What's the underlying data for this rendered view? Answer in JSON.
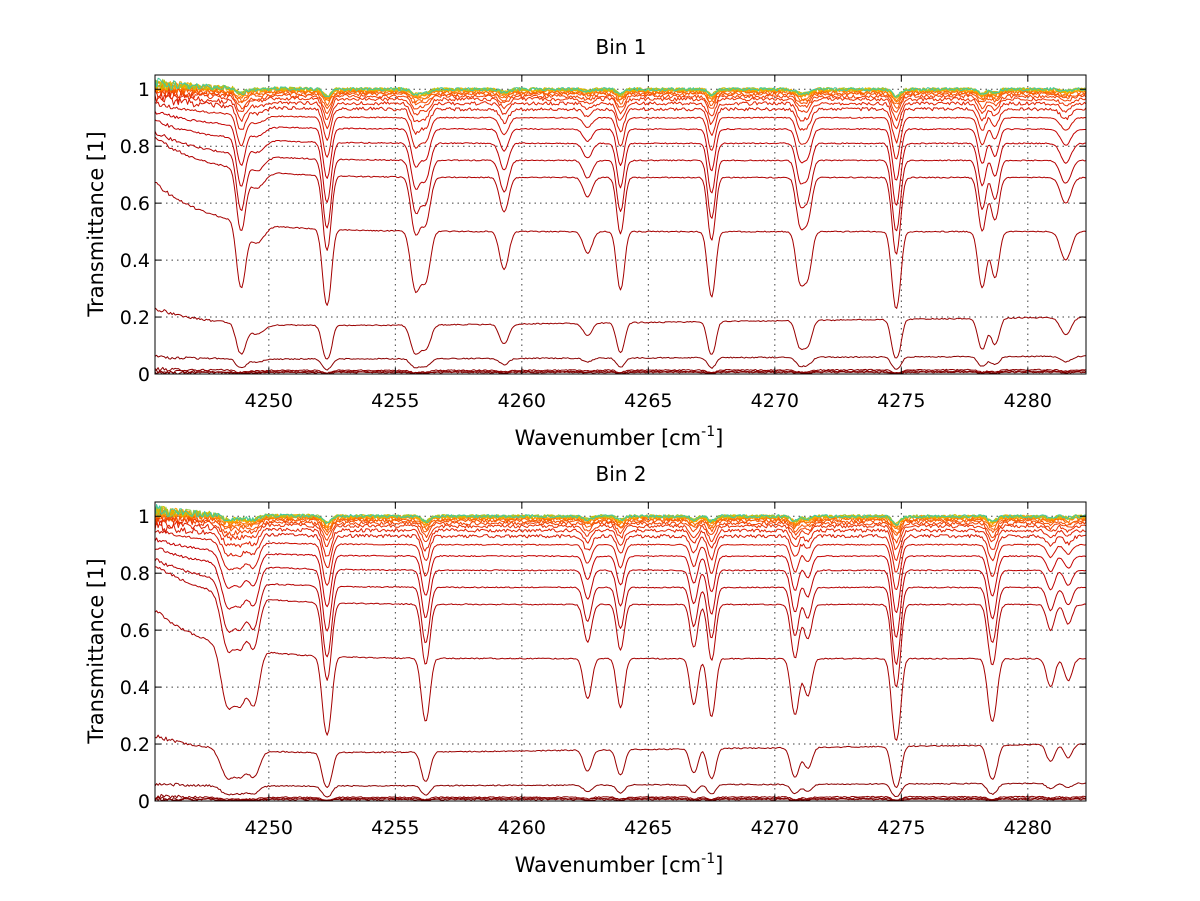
{
  "chart_data": [
    {
      "type": "line",
      "title": "Bin 1",
      "xlabel": "Wavenumber [cm",
      "xlabel_sup": "-1",
      "xlabel_end": "]",
      "ylabel": "Transmittance [1]",
      "xlim": [
        4245.5,
        4282.3
      ],
      "ylim": [
        0,
        1.05
      ],
      "xticks": [
        4250,
        4255,
        4260,
        4265,
        4270,
        4275,
        4280
      ],
      "xtick_labels": [
        "4250",
        "4255",
        "4260",
        "4265",
        "4270",
        "4275",
        "4280"
      ],
      "yticks": [
        0,
        0.2,
        0.4,
        0.6,
        0.8,
        1
      ],
      "ytick_labels": [
        "0",
        "0.2",
        "0.4",
        "0.6",
        "0.8",
        "1"
      ],
      "grid": true,
      "lines": [
        {
          "x": 4248.9,
          "w": 0.16,
          "a": 1.0
        },
        {
          "x": 4249.5,
          "w": 0.3,
          "a": 0.25
        },
        {
          "x": 4252.3,
          "w": 0.15,
          "a": 1.35
        },
        {
          "x": 4255.8,
          "w": 0.17,
          "a": 0.95
        },
        {
          "x": 4256.2,
          "w": 0.17,
          "a": 0.75
        },
        {
          "x": 4259.3,
          "w": 0.17,
          "a": 0.55
        },
        {
          "x": 4262.6,
          "w": 0.17,
          "a": 0.3
        },
        {
          "x": 4263.9,
          "w": 0.14,
          "a": 0.95
        },
        {
          "x": 4267.5,
          "w": 0.14,
          "a": 1.1
        },
        {
          "x": 4271.0,
          "w": 0.15,
          "a": 0.75
        },
        {
          "x": 4271.3,
          "w": 0.15,
          "a": 0.65
        },
        {
          "x": 4274.8,
          "w": 0.15,
          "a": 1.4
        },
        {
          "x": 4278.2,
          "w": 0.15,
          "a": 0.9
        },
        {
          "x": 4278.7,
          "w": 0.15,
          "a": 0.7
        },
        {
          "x": 4281.5,
          "w": 0.2,
          "a": 0.4
        }
      ],
      "series": [
        {
          "base": 0.005,
          "edge": 0.0,
          "color": "#7a0000"
        },
        {
          "base": 0.008,
          "edge": 0.0,
          "color": "#800000"
        },
        {
          "base": 0.012,
          "edge": 0.005,
          "color": "#8b0000"
        },
        {
          "base": 0.05,
          "edge": 0.01,
          "color": "#8b0000"
        },
        {
          "base": 0.16,
          "edge": 0.07,
          "color": "#990000"
        },
        {
          "base": 0.5,
          "edge": 0.17,
          "color": "#a50000"
        },
        {
          "base": 0.69,
          "edge": 0.14,
          "color": "#b00000"
        },
        {
          "base": 0.75,
          "edge": 0.1,
          "color": "#b50000"
        },
        {
          "base": 0.81,
          "edge": 0.08,
          "color": "#bd0000"
        },
        {
          "base": 0.86,
          "edge": 0.06,
          "color": "#c40000"
        },
        {
          "base": 0.9,
          "edge": 0.05,
          "color": "#cc1000"
        },
        {
          "base": 0.93,
          "edge": 0.04,
          "color": "#d61800"
        },
        {
          "base": 0.95,
          "edge": 0.03,
          "color": "#e02000"
        },
        {
          "base": 0.965,
          "edge": 0.03,
          "color": "#e83000"
        },
        {
          "base": 0.975,
          "edge": 0.02,
          "color": "#f04000"
        },
        {
          "base": 0.983,
          "edge": 0.02,
          "color": "#f55000"
        },
        {
          "base": 0.988,
          "edge": 0.02,
          "color": "#f86000"
        },
        {
          "base": 0.992,
          "edge": 0.02,
          "color": "#fa7000"
        },
        {
          "base": 0.995,
          "edge": 0.02,
          "color": "#fc8000"
        },
        {
          "base": 0.997,
          "edge": 0.02,
          "color": "#fd9000"
        },
        {
          "base": 0.998,
          "edge": 0.02,
          "color": "#fea000"
        },
        {
          "base": 0.999,
          "edge": 0.02,
          "color": "#f0b000"
        },
        {
          "base": 1.0,
          "edge": 0.02,
          "color": "#c8c000"
        },
        {
          "base": 1.0,
          "edge": 0.02,
          "color": "#90c840"
        },
        {
          "base": 1.0,
          "edge": 0.02,
          "color": "#40c8a0"
        }
      ]
    },
    {
      "type": "line",
      "title": "Bin 2",
      "xlabel": "Wavenumber [cm",
      "xlabel_sup": "-1",
      "xlabel_end": "]",
      "ylabel": "Transmittance [1]",
      "xlim": [
        4245.5,
        4282.3
      ],
      "ylim": [
        0,
        1.05
      ],
      "xticks": [
        4250,
        4255,
        4260,
        4265,
        4270,
        4275,
        4280
      ],
      "xtick_labels": [
        "4250",
        "4255",
        "4260",
        "4265",
        "4270",
        "4275",
        "4280"
      ],
      "yticks": [
        0,
        0.2,
        0.4,
        0.6,
        0.8,
        1
      ],
      "ytick_labels": [
        "0",
        "0.2",
        "0.4",
        "0.6",
        "0.8",
        "1"
      ],
      "grid": true,
      "lines": [
        {
          "x": 4248.4,
          "w": 0.25,
          "a": 0.9
        },
        {
          "x": 4248.9,
          "w": 0.2,
          "a": 0.7
        },
        {
          "x": 4249.4,
          "w": 0.2,
          "a": 0.8
        },
        {
          "x": 4252.3,
          "w": 0.16,
          "a": 1.4
        },
        {
          "x": 4256.2,
          "w": 0.15,
          "a": 1.05
        },
        {
          "x": 4262.6,
          "w": 0.15,
          "a": 0.6
        },
        {
          "x": 4263.9,
          "w": 0.14,
          "a": 0.75
        },
        {
          "x": 4266.8,
          "w": 0.14,
          "a": 0.7
        },
        {
          "x": 4267.5,
          "w": 0.14,
          "a": 0.95
        },
        {
          "x": 4270.8,
          "w": 0.15,
          "a": 0.9
        },
        {
          "x": 4271.3,
          "w": 0.15,
          "a": 0.55
        },
        {
          "x": 4274.8,
          "w": 0.15,
          "a": 1.55
        },
        {
          "x": 4278.6,
          "w": 0.16,
          "a": 1.05
        },
        {
          "x": 4280.9,
          "w": 0.15,
          "a": 0.4
        },
        {
          "x": 4281.6,
          "w": 0.15,
          "a": 0.3
        }
      ],
      "series": [
        {
          "base": 0.005,
          "edge": 0.0,
          "color": "#7a0000"
        },
        {
          "base": 0.008,
          "edge": 0.0,
          "color": "#800000"
        },
        {
          "base": 0.012,
          "edge": 0.005,
          "color": "#8b0000"
        },
        {
          "base": 0.05,
          "edge": 0.01,
          "color": "#8b0000"
        },
        {
          "base": 0.16,
          "edge": 0.07,
          "color": "#990000"
        },
        {
          "base": 0.5,
          "edge": 0.17,
          "color": "#a50000"
        },
        {
          "base": 0.69,
          "edge": 0.14,
          "color": "#b00000"
        },
        {
          "base": 0.75,
          "edge": 0.1,
          "color": "#b50000"
        },
        {
          "base": 0.81,
          "edge": 0.08,
          "color": "#bd0000"
        },
        {
          "base": 0.86,
          "edge": 0.06,
          "color": "#c40000"
        },
        {
          "base": 0.9,
          "edge": 0.05,
          "color": "#cc1000"
        },
        {
          "base": 0.93,
          "edge": 0.04,
          "color": "#d61800"
        },
        {
          "base": 0.95,
          "edge": 0.03,
          "color": "#e02000"
        },
        {
          "base": 0.965,
          "edge": 0.03,
          "color": "#e83000"
        },
        {
          "base": 0.975,
          "edge": 0.02,
          "color": "#f04000"
        },
        {
          "base": 0.983,
          "edge": 0.02,
          "color": "#f55000"
        },
        {
          "base": 0.988,
          "edge": 0.02,
          "color": "#f86000"
        },
        {
          "base": 0.992,
          "edge": 0.02,
          "color": "#fa7000"
        },
        {
          "base": 0.995,
          "edge": 0.02,
          "color": "#fc8000"
        },
        {
          "base": 0.997,
          "edge": 0.02,
          "color": "#fd9000"
        },
        {
          "base": 0.998,
          "edge": 0.02,
          "color": "#fea000"
        },
        {
          "base": 0.999,
          "edge": 0.02,
          "color": "#f0b000"
        },
        {
          "base": 1.0,
          "edge": 0.02,
          "color": "#c8c000"
        },
        {
          "base": 1.0,
          "edge": 0.02,
          "color": "#90c840"
        },
        {
          "base": 1.0,
          "edge": 0.02,
          "color": "#40c8a0"
        }
      ]
    }
  ]
}
